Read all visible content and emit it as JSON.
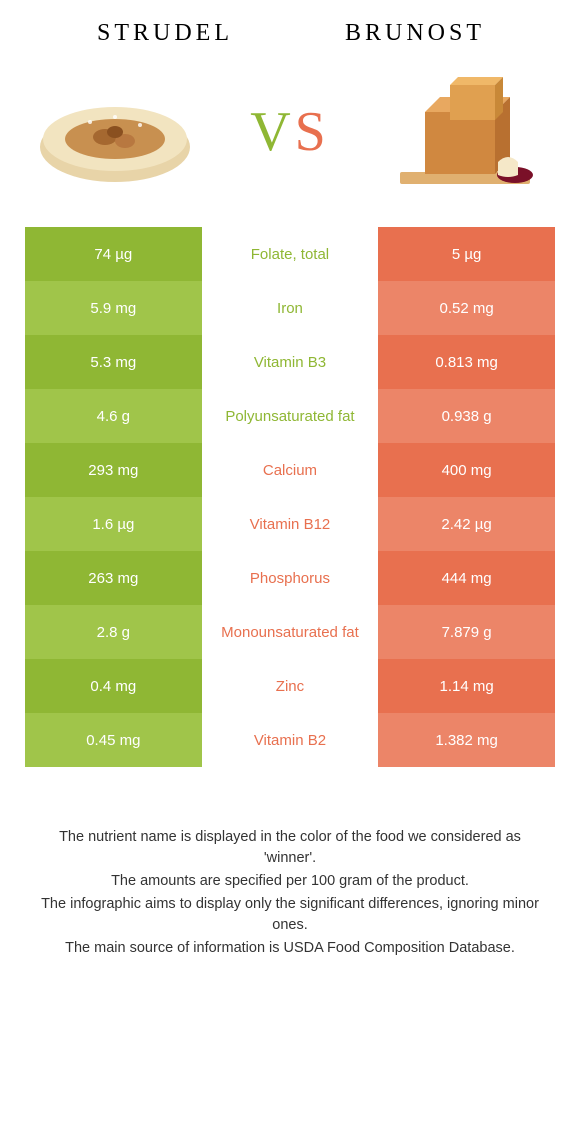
{
  "colors": {
    "green_dark": "#8fb734",
    "green_light": "#a0c54a",
    "orange_dark": "#e8704f",
    "orange_light": "#ec8568",
    "white": "#ffffff",
    "text": "#333333"
  },
  "left_food": {
    "title": "STRUDEL"
  },
  "right_food": {
    "title": "BRUNOST"
  },
  "vs": {
    "v": "V",
    "s": "S"
  },
  "rows": [
    {
      "left": "74 µg",
      "label": "Folate, total",
      "right": "5 µg",
      "winner": "left"
    },
    {
      "left": "5.9 mg",
      "label": "Iron",
      "right": "0.52 mg",
      "winner": "left"
    },
    {
      "left": "5.3 mg",
      "label": "Vitamin B3",
      "right": "0.813 mg",
      "winner": "left"
    },
    {
      "left": "4.6 g",
      "label": "Polyunsaturated fat",
      "right": "0.938 g",
      "winner": "left"
    },
    {
      "left": "293 mg",
      "label": "Calcium",
      "right": "400 mg",
      "winner": "right"
    },
    {
      "left": "1.6 µg",
      "label": "Vitamin B12",
      "right": "2.42 µg",
      "winner": "right"
    },
    {
      "left": "263 mg",
      "label": "Phosphorus",
      "right": "444 mg",
      "winner": "right"
    },
    {
      "left": "2.8 g",
      "label": "Monounsaturated fat",
      "right": "7.879 g",
      "winner": "right"
    },
    {
      "left": "0.4 mg",
      "label": "Zinc",
      "right": "1.14 mg",
      "winner": "right"
    },
    {
      "left": "0.45 mg",
      "label": "Vitamin B2",
      "right": "1.382 mg",
      "winner": "right"
    }
  ],
  "footnotes": [
    "The nutrient name is displayed in the color of the food we considered as 'winner'.",
    "The amounts are specified per 100 gram of the product.",
    "The infographic aims to display only the significant differences, ignoring minor ones.",
    "The main source of information is USDA Food Composition Database."
  ]
}
